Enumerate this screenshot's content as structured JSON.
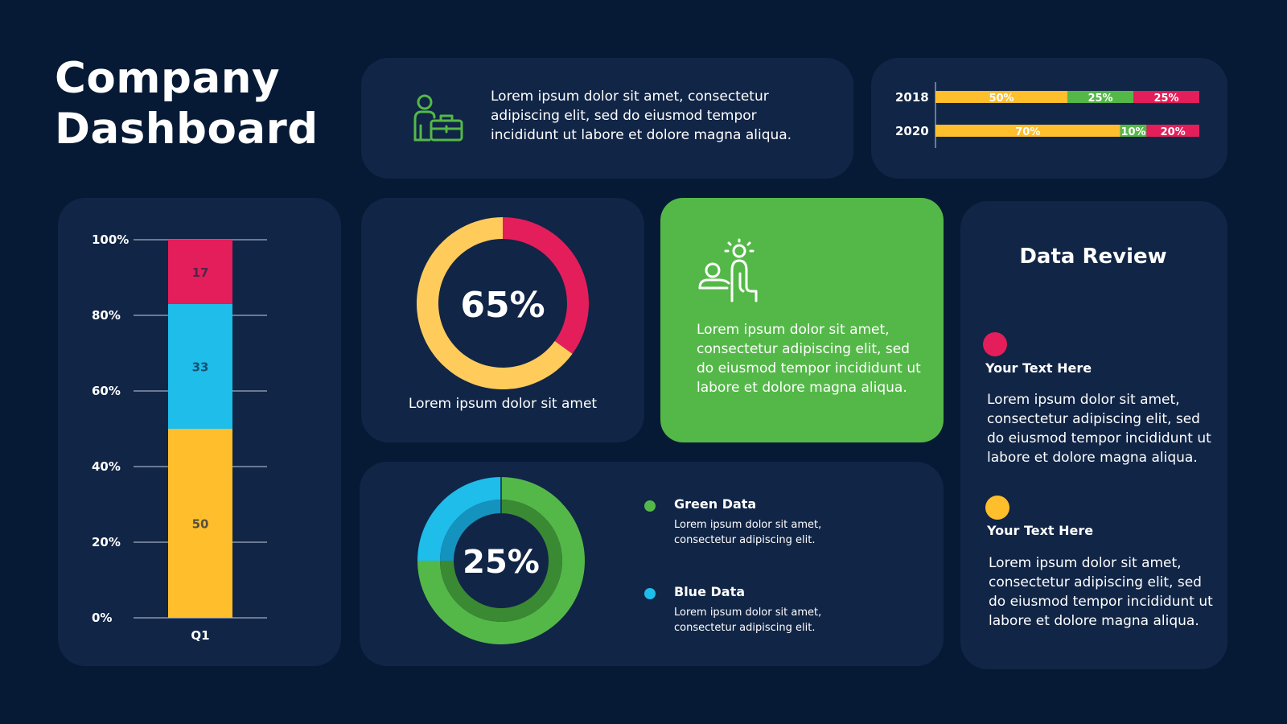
{
  "header": {
    "title_line1": "Company",
    "title_line2": "Dashboard"
  },
  "intro": {
    "text": "Lorem ipsum dolor sit amet, consectetur adipiscing elit, sed do eiusmod tempor incididunt ut labore et dolore magna aliqua.",
    "icon": "businessman-briefcase-icon"
  },
  "colors": {
    "background": "#061a35",
    "panel": "#112546",
    "yellow": "#ffbe2b",
    "light_yellow": "#ffcc5c",
    "green": "#54b848",
    "dark_green": "#3a8a33",
    "red": "#e31e5b",
    "blue": "#1ebdea",
    "grid": "#8796ad"
  },
  "chart_data": [
    {
      "type": "bar",
      "stacked": true,
      "orientation": "vertical",
      "categories": [
        "Q1"
      ],
      "series": [
        {
          "values": [
            50
          ],
          "color": "#ffbe2b"
        },
        {
          "values": [
            33
          ],
          "color": "#1ebdea"
        },
        {
          "values": [
            17
          ],
          "color": "#e31e5b"
        }
      ],
      "y_ticks": [
        "0%",
        "20%",
        "40%",
        "60%",
        "80%",
        "100%"
      ],
      "ylim": [
        0,
        100
      ],
      "grid": true
    },
    {
      "type": "bar",
      "stacked": true,
      "orientation": "horizontal",
      "categories": [
        "2018",
        "2020"
      ],
      "series": [
        {
          "values": [
            50,
            70
          ],
          "labels": [
            "50%",
            "70%"
          ],
          "color": "#ffbe2b"
        },
        {
          "values": [
            25,
            10
          ],
          "labels": [
            "25%",
            "10%"
          ],
          "color": "#54b848"
        },
        {
          "values": [
            25,
            20
          ],
          "labels": [
            "25%",
            "20%"
          ],
          "color": "#e31e5b"
        }
      ],
      "xlim": [
        0,
        100
      ]
    },
    {
      "type": "pie",
      "donut": true,
      "center_label": "65%",
      "slices": [
        {
          "value": 35,
          "color": "#e31e5b"
        },
        {
          "value": 65,
          "color": "#ffcc5c"
        }
      ],
      "caption": "Lorem ipsum dolor sit amet"
    },
    {
      "type": "pie",
      "donut": true,
      "center_label": "25%",
      "slices": [
        {
          "name": "Green Data",
          "value": 75,
          "color": "#54b848"
        },
        {
          "name": "Blue Data",
          "value": 25,
          "color": "#1ebdea"
        }
      ],
      "legend": [
        {
          "title": "Green Data",
          "text": "Lorem ipsum dolor sit amet, consectetur adipiscing elit.",
          "color": "#54b848"
        },
        {
          "title": "Blue Data",
          "text": "Lorem ipsum dolor sit amet, consectetur adipiscing elit.",
          "color": "#1ebdea"
        }
      ]
    }
  ],
  "green_card": {
    "icon": "people-ideas-icon",
    "text": "Lorem ipsum dolor sit amet, consectetur adipiscing elit, sed do eiusmod tempor incididunt ut labore et dolore magna aliqua."
  },
  "data_review": {
    "title": "Data Review",
    "items": [
      {
        "title": "Your Text Here",
        "text": "Lorem ipsum dolor sit amet, consectetur adipiscing elit, sed do eiusmod tempor incididunt ut labore et dolore magna aliqua.",
        "color": "#e31e5b"
      },
      {
        "title": "Your Text Here",
        "text": "Lorem ipsum dolor sit amet, consectetur adipiscing elit, sed do eiusmod tempor incididunt ut labore et dolore magna aliqua.",
        "color": "#ffbe2b"
      }
    ]
  }
}
